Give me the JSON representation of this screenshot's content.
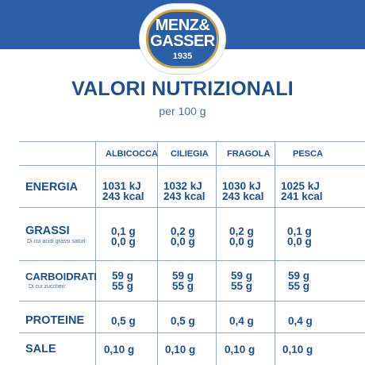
{
  "brand": {
    "line1": "MENZ&",
    "line2": "GASSER",
    "year": "1935"
  },
  "heading": {
    "title": "VALORI NUTRIZIONALI",
    "subtitle": "per 100 g"
  },
  "table": {
    "columns": [
      "ALBICOCCA",
      "CILIEGIA",
      "FRAGOLA",
      "PESCA"
    ],
    "rows": [
      {
        "label": "ENERGIA",
        "sub": "",
        "values": [
          [
            "1031 kJ",
            "243 kcal"
          ],
          [
            "1032 kJ",
            "243 kcal"
          ],
          [
            "1030 kJ",
            "243 kcal"
          ],
          [
            "1025 kJ",
            "241 kcal"
          ]
        ]
      },
      {
        "label": "GRASSI",
        "sub": "Di cui acidi grassi saturi:",
        "values": [
          [
            "0,1 g",
            "0,0 g"
          ],
          [
            "0,2 g",
            "0,0 g"
          ],
          [
            "0,2 g",
            "0,0 g"
          ],
          [
            "0,1 g",
            "0,0 g"
          ]
        ]
      },
      {
        "label": "CARBOIDRATI",
        "sub": "Di cui zuccheri:",
        "values": [
          [
            "59 g",
            "55 g"
          ],
          [
            "59 g",
            "55 g"
          ],
          [
            "59 g",
            "55 g"
          ],
          [
            "59 g",
            "55 g"
          ]
        ]
      },
      {
        "label": "PROTEINE",
        "sub": "",
        "values": [
          [
            "0,5 g"
          ],
          [
            "0,5 g"
          ],
          [
            "0,4 g"
          ],
          [
            "0,4 g"
          ]
        ]
      },
      {
        "label": "SALE",
        "sub": "",
        "values": [
          [
            "0,10 g"
          ],
          [
            "0,10 g"
          ],
          [
            "0,10 g"
          ],
          [
            "0,10 g"
          ]
        ]
      }
    ]
  },
  "colors": {
    "brand_blue": "#2a5fa8",
    "text_blue": "#1f4e8c",
    "gold": "#c9a24a",
    "grid": "#8fa8c8"
  }
}
